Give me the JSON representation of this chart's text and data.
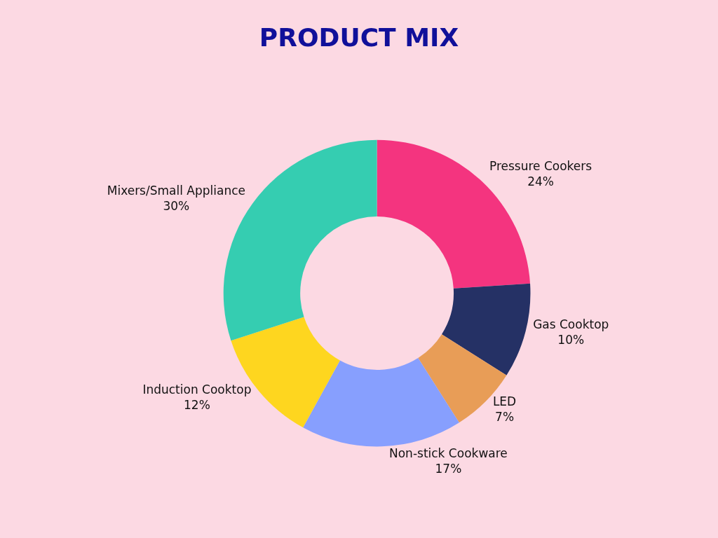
{
  "chart_data": {
    "type": "donut",
    "title": "PRODUCT MIX",
    "categories": [
      "Pressure Cookers",
      "Gas Cooktop",
      "LED",
      "Non-stick Cookware",
      "Induction Cooktop",
      "Mixers/Small Appliance"
    ],
    "values": [
      24,
      10,
      7,
      17,
      12,
      30
    ],
    "colors": [
      "#f4347f",
      "#253165",
      "#e89d57",
      "#879ffe",
      "#fed61f",
      "#35cdb1"
    ],
    "value_labels": [
      "24%",
      "10%",
      "7%",
      "17%",
      "12%",
      "30%"
    ]
  }
}
